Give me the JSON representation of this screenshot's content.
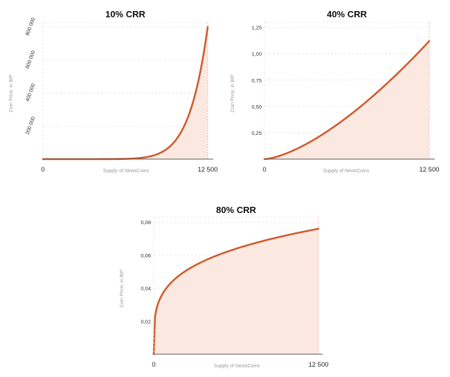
{
  "chart_data": [
    {
      "type": "area",
      "title": "10% CRR",
      "xlabel": "Supply of NewsCoins",
      "ylabel": "Coin Price, in BIP",
      "x_tick_labels": [
        "0",
        "12 500"
      ],
      "y_tick_labels": [
        "200 000",
        "400 000",
        "600 000",
        "800 000"
      ],
      "y_ticks": [
        200000,
        400000,
        600000,
        800000
      ],
      "xlim": [
        0,
        12500
      ],
      "ylim": [
        0,
        830000
      ],
      "curve": {
        "crr": 0.1,
        "x_end": 12500,
        "y_end": 800000
      },
      "grid": true
    },
    {
      "type": "area",
      "title": "40% CRR",
      "xlabel": "Supply of NewsCoins",
      "ylabel": "Coin Price, in BIP",
      "x_tick_labels": [
        "0",
        "12 500"
      ],
      "y_tick_labels": [
        "0,25",
        "0,50",
        "0,75",
        "1,00",
        "1,25"
      ],
      "y_ticks": [
        0.25,
        0.5,
        0.75,
        1.0,
        1.25
      ],
      "xlim": [
        0,
        12500
      ],
      "ylim": [
        0,
        1.3
      ],
      "curve": {
        "crr": 0.4,
        "x_end": 12500,
        "y_end": 1.12
      },
      "grid": true
    },
    {
      "type": "area",
      "title": "80% CRR",
      "xlabel": "Supply of NewsCoins",
      "ylabel": "Coin Price, in BIP",
      "x_tick_labels": [
        "0",
        "12 500"
      ],
      "y_tick_labels": [
        "0,02",
        "0,04",
        "0,06",
        "0,08"
      ],
      "y_ticks": [
        0.02,
        0.04,
        0.06,
        0.08
      ],
      "xlim": [
        0,
        12500
      ],
      "ylim": [
        0,
        0.083
      ],
      "curve": {
        "crr": 0.8,
        "x_end": 12500,
        "y_end": 0.076
      },
      "grid": true
    }
  ],
  "colors": {
    "line": "#d05a2c",
    "fill": "#fbe9e1",
    "end_marker": "#e6a58a",
    "grid": "#e2e2e2"
  }
}
